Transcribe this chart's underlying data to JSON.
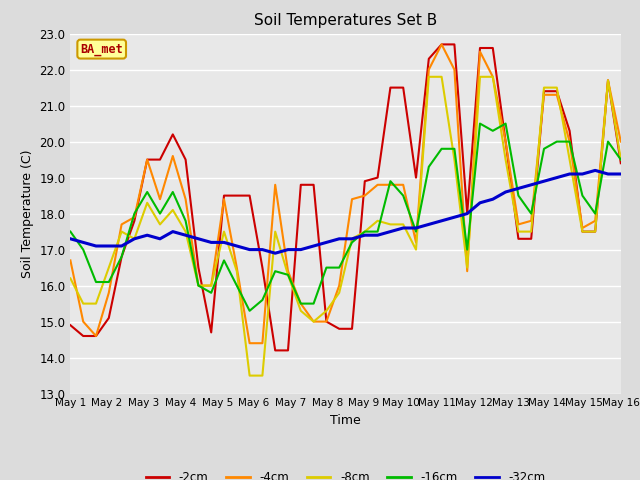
{
  "title": "Soil Temperatures Set B",
  "xlabel": "Time",
  "ylabel": "Soil Temperature (C)",
  "annotation": "BA_met",
  "ylim": [
    13.0,
    23.0
  ],
  "yticks": [
    13.0,
    14.0,
    15.0,
    16.0,
    17.0,
    18.0,
    19.0,
    20.0,
    21.0,
    22.0,
    23.0
  ],
  "xtick_labels": [
    "May 1",
    "May 2",
    "May 3",
    "May 4",
    "May 5",
    "May 6",
    "May 7",
    "May 8",
    "May 9",
    "May 10",
    "May 11",
    "May 12",
    "May 13",
    "May 14",
    "May 15",
    "May 16"
  ],
  "fig_width": 6.4,
  "fig_height": 4.8,
  "dpi": 100,
  "bg_color": "#dcdcdc",
  "plot_bg_color": "#e8e8e8",
  "grid_color": "#ffffff",
  "colors": {
    "-2cm": "#cc0000",
    "-4cm": "#ff8800",
    "-8cm": "#ddcc00",
    "-16cm": "#00bb00",
    "-32cm": "#0000cc"
  },
  "linewidths": {
    "-2cm": 1.5,
    "-4cm": 1.5,
    "-8cm": 1.5,
    "-16cm": 1.5,
    "-32cm": 2.2
  },
  "series": {
    "-2cm": [
      14.9,
      14.6,
      14.6,
      15.1,
      16.8,
      17.8,
      19.5,
      19.5,
      20.2,
      19.5,
      16.5,
      14.7,
      18.5,
      18.5,
      18.5,
      16.5,
      14.2,
      14.2,
      18.8,
      18.8,
      15.0,
      14.8,
      14.8,
      18.9,
      19.0,
      21.5,
      21.5,
      19.0,
      22.3,
      22.7,
      22.7,
      18.0,
      22.6,
      22.6,
      20.0,
      17.3,
      17.3,
      21.4,
      21.4,
      20.3,
      17.5,
      17.5,
      21.7,
      19.4
    ],
    "-4cm": [
      16.7,
      15.0,
      14.6,
      15.8,
      17.7,
      17.9,
      19.5,
      18.4,
      19.6,
      18.4,
      16.0,
      16.0,
      18.4,
      16.5,
      14.4,
      14.4,
      18.8,
      16.4,
      15.5,
      15.0,
      15.0,
      16.0,
      18.4,
      18.5,
      18.8,
      18.8,
      18.8,
      17.2,
      22.0,
      22.7,
      22.0,
      16.4,
      22.5,
      21.8,
      20.0,
      17.7,
      17.8,
      21.3,
      21.3,
      20.0,
      17.6,
      17.8,
      21.7,
      20.0
    ],
    "-8cm": [
      16.2,
      15.5,
      15.5,
      16.5,
      17.5,
      17.3,
      18.3,
      17.7,
      18.1,
      17.5,
      16.0,
      16.0,
      17.5,
      16.4,
      13.5,
      13.5,
      17.5,
      16.3,
      15.3,
      15.0,
      15.3,
      15.8,
      17.3,
      17.5,
      17.8,
      17.7,
      17.7,
      17.0,
      21.8,
      21.8,
      19.5,
      16.5,
      21.8,
      21.8,
      19.5,
      17.5,
      17.5,
      21.5,
      21.5,
      19.5,
      17.5,
      17.5,
      21.7,
      19.5
    ],
    "-16cm": [
      17.5,
      17.0,
      16.1,
      16.1,
      16.8,
      18.0,
      18.6,
      18.0,
      18.6,
      17.8,
      16.0,
      15.8,
      16.7,
      16.0,
      15.3,
      15.6,
      16.4,
      16.3,
      15.5,
      15.5,
      16.5,
      16.5,
      17.2,
      17.5,
      17.5,
      18.9,
      18.5,
      17.5,
      19.3,
      19.8,
      19.8,
      17.0,
      20.5,
      20.3,
      20.5,
      18.5,
      18.0,
      19.8,
      20.0,
      20.0,
      18.5,
      18.0,
      20.0,
      19.5
    ],
    "-32cm": [
      17.3,
      17.2,
      17.1,
      17.1,
      17.1,
      17.3,
      17.4,
      17.3,
      17.5,
      17.4,
      17.3,
      17.2,
      17.2,
      17.1,
      17.0,
      17.0,
      16.9,
      17.0,
      17.0,
      17.1,
      17.2,
      17.3,
      17.3,
      17.4,
      17.4,
      17.5,
      17.6,
      17.6,
      17.7,
      17.8,
      17.9,
      18.0,
      18.3,
      18.4,
      18.6,
      18.7,
      18.8,
      18.9,
      19.0,
      19.1,
      19.1,
      19.2,
      19.1,
      19.1
    ]
  }
}
